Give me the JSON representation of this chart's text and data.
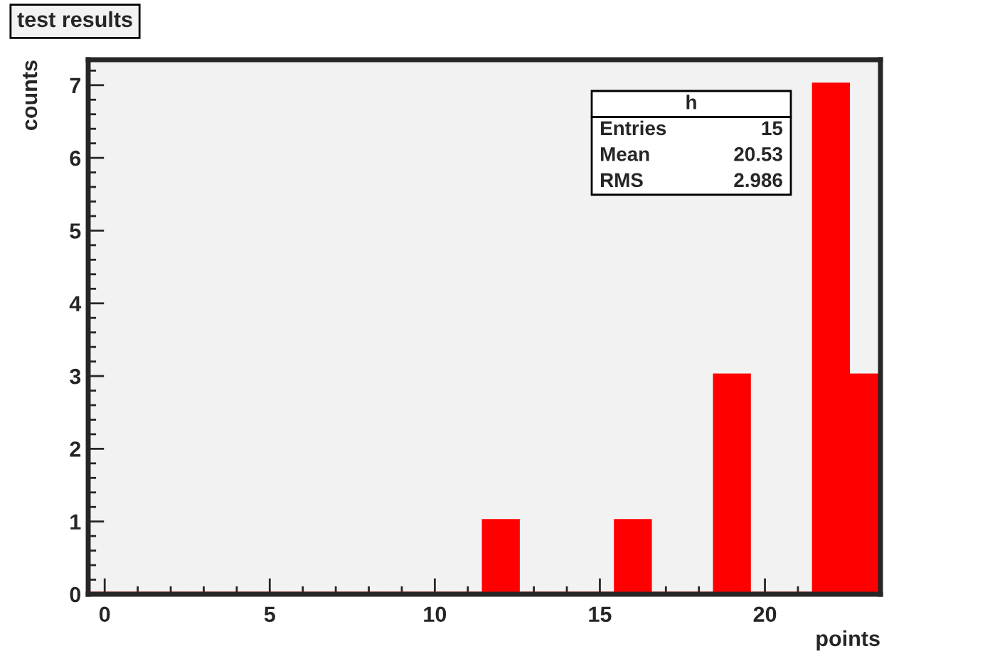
{
  "chart_data": {
    "type": "histogram",
    "title": "test results",
    "xlabel": "points",
    "ylabel": "counts",
    "bins": [
      -0.5,
      0.5,
      1.5,
      2.5,
      3.5,
      4.5,
      5.5,
      6.5,
      7.5,
      8.5,
      9.5,
      10.5,
      11.5,
      12.5,
      13.5,
      14.5,
      15.5,
      16.5,
      17.5,
      18.5,
      19.5,
      20.5,
      21.5,
      22.5,
      23.5
    ],
    "values": [
      0,
      0,
      0,
      0,
      0,
      0,
      0,
      0,
      0,
      0,
      0,
      0,
      1,
      0,
      0,
      0,
      1,
      0,
      0,
      3,
      0,
      0,
      7,
      3
    ],
    "color": "#ff0000",
    "xlim": [
      -0.5,
      23.5
    ],
    "xticks": [
      0,
      5,
      10,
      15,
      20
    ],
    "ylim": [
      0,
      7.35
    ],
    "yticks": [
      0,
      1,
      2,
      3,
      4,
      5,
      6,
      7
    ],
    "grid": false,
    "legend": false,
    "annotations": [
      "h",
      "Entries",
      "15",
      "Mean",
      "20.53",
      "RMS",
      "2.986"
    ]
  }
}
